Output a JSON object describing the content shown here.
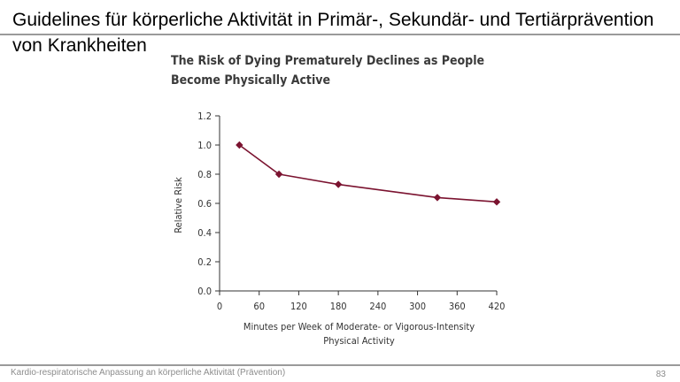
{
  "slide": {
    "title": "Guidelines für körperliche Aktivität in Primär-, Sekundär- und Tertiärprävention von Krankheiten",
    "footer": "Kardio-respiratorische Anpassung an körperliche Aktivität (Prävention)",
    "page_number": "83"
  },
  "chart_data": {
    "type": "line",
    "title_lines": [
      "The Risk of Dying Prematurely Declines as People",
      "Become Physically Active"
    ],
    "xlabel_lines": [
      "Minutes per Week of Moderate- or Vigorous-Intensity",
      "Physical Activity"
    ],
    "ylabel": "Relative Risk",
    "xlim": [
      0,
      420
    ],
    "ylim": [
      0,
      1.2
    ],
    "x_ticks": [
      0,
      60,
      120,
      180,
      240,
      300,
      360,
      420
    ],
    "y_ticks": [
      "0.0",
      "0.2",
      "0.4",
      "0.6",
      "0.8",
      "1.0",
      "1.2"
    ],
    "grid": false,
    "series": [
      {
        "x": [
          30,
          90,
          180,
          330,
          420
        ],
        "y": [
          1.0,
          0.8,
          0.73,
          0.64,
          0.61
        ]
      }
    ],
    "colors": {
      "series": "#7b1330",
      "axis": "#333333",
      "text": "#333333"
    }
  }
}
